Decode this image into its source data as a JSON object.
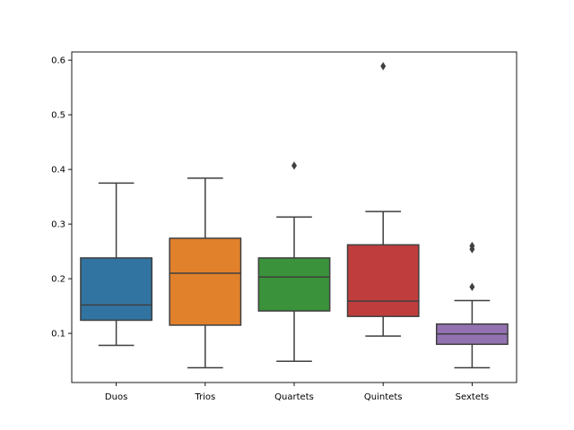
{
  "chart_data": {
    "type": "box",
    "title": "",
    "xlabel": "",
    "ylabel": "",
    "ylim": [
      0.01,
      0.615
    ],
    "yticks": [
      0.1,
      0.2,
      0.3,
      0.4,
      0.5,
      0.6
    ],
    "ytick_labels": [
      "0.1",
      "0.2",
      "0.3",
      "0.4",
      "0.5",
      "0.6"
    ],
    "categories": [
      "Duos",
      "Trios",
      "Quartets",
      "Quintets",
      "Sextets"
    ],
    "boxes": [
      {
        "category": "Duos",
        "whisker_low": 0.078,
        "q1": 0.124,
        "median": 0.152,
        "q3": 0.238,
        "whisker_high": 0.375,
        "outliers": [],
        "color": "#3274a1"
      },
      {
        "category": "Trios",
        "whisker_low": 0.037,
        "q1": 0.115,
        "median": 0.21,
        "q3": 0.274,
        "whisker_high": 0.384,
        "outliers": [],
        "color": "#e1812c"
      },
      {
        "category": "Quartets",
        "whisker_low": 0.049,
        "q1": 0.141,
        "median": 0.203,
        "q3": 0.238,
        "whisker_high": 0.313,
        "outliers": [
          0.407
        ],
        "color": "#3a923a"
      },
      {
        "category": "Quintets",
        "whisker_low": 0.095,
        "q1": 0.131,
        "median": 0.159,
        "q3": 0.262,
        "whisker_high": 0.323,
        "outliers": [
          0.589
        ],
        "color": "#c03d3e"
      },
      {
        "category": "Sextets",
        "whisker_low": 0.037,
        "q1": 0.08,
        "median": 0.099,
        "q3": 0.117,
        "whisker_high": 0.16,
        "outliers": [
          0.185,
          0.254,
          0.26
        ],
        "color": "#9372b2"
      }
    ],
    "grid": false,
    "legend": "none"
  }
}
